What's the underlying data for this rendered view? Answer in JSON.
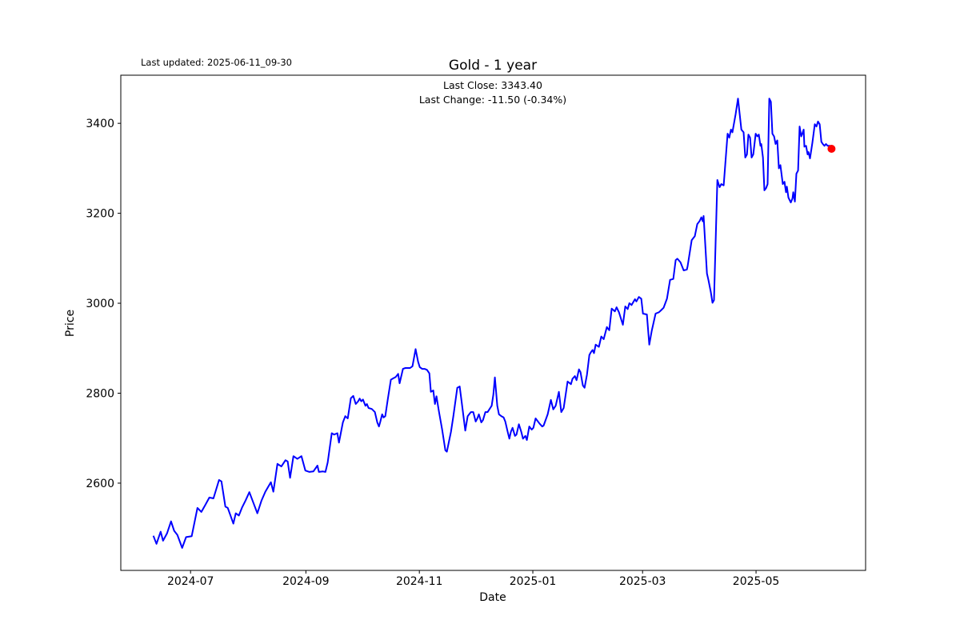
{
  "header": {
    "last_updated": "Last updated: 2025-06-11_09-30"
  },
  "chart_data": {
    "type": "line",
    "title": "Gold - 1 year",
    "xlabel": "Date",
    "ylabel": "Price",
    "annotation": {
      "last_close": "Last Close: 3343.40",
      "last_change": "Last Change: -11.50 (-0.34%)"
    },
    "last_close_value": 3343.4,
    "last_change_value": "-11.50 (-0.34%)",
    "line_color": "#0000ff",
    "marker_color": "#ff0000",
    "grid": false,
    "start_date": "2024-06-11",
    "x_unit": "days_since_start_date",
    "x_domain_days": [
      -17.5,
      382.9
    ],
    "y_domain": [
      2406,
      3507
    ],
    "x_ticks": [
      {
        "label": "2024-07",
        "day": 20
      },
      {
        "label": "2024-09",
        "day": 82
      },
      {
        "label": "2024-11",
        "day": 143
      },
      {
        "label": "2025-01",
        "day": 204
      },
      {
        "label": "2025-03",
        "day": 263
      },
      {
        "label": "2025-05",
        "day": 324
      }
    ],
    "y_ticks": [
      2600,
      2800,
      3000,
      3200,
      3400
    ],
    "last_point": {
      "day": 364.6,
      "price": 3343.4
    },
    "points": [
      [
        0,
        2483
      ],
      [
        1.7,
        2465
      ],
      [
        3.9,
        2492
      ],
      [
        5.2,
        2472
      ],
      [
        7.3,
        2488
      ],
      [
        9.5,
        2515
      ],
      [
        11.2,
        2494
      ],
      [
        12.9,
        2485
      ],
      [
        15.5,
        2456
      ],
      [
        17.6,
        2480
      ],
      [
        20.6,
        2482
      ],
      [
        23.7,
        2545
      ],
      [
        25.8,
        2536
      ],
      [
        28,
        2552
      ],
      [
        30.1,
        2568
      ],
      [
        32.3,
        2566
      ],
      [
        35.3,
        2607
      ],
      [
        36.6,
        2604
      ],
      [
        38.7,
        2548
      ],
      [
        40,
        2545
      ],
      [
        41.7,
        2525
      ],
      [
        43,
        2510
      ],
      [
        44.3,
        2533
      ],
      [
        46,
        2528
      ],
      [
        47.7,
        2546
      ],
      [
        49.5,
        2561
      ],
      [
        51.6,
        2580
      ],
      [
        53.8,
        2556
      ],
      [
        55.9,
        2533
      ],
      [
        58.1,
        2561
      ],
      [
        60.2,
        2581
      ],
      [
        63.2,
        2602
      ],
      [
        64.5,
        2581
      ],
      [
        66.7,
        2643
      ],
      [
        68.8,
        2637
      ],
      [
        71,
        2651
      ],
      [
        72.2,
        2648
      ],
      [
        73.5,
        2612
      ],
      [
        75.3,
        2660
      ],
      [
        77.4,
        2654
      ],
      [
        79.6,
        2660
      ],
      [
        81.7,
        2628
      ],
      [
        83.9,
        2625
      ],
      [
        86,
        2626
      ],
      [
        88.2,
        2639
      ],
      [
        89,
        2625
      ],
      [
        91.2,
        2626
      ],
      [
        92.5,
        2625
      ],
      [
        93.7,
        2646
      ],
      [
        95.9,
        2711
      ],
      [
        97.2,
        2708
      ],
      [
        98.9,
        2711
      ],
      [
        99.8,
        2690
      ],
      [
        101.9,
        2735
      ],
      [
        103.2,
        2749
      ],
      [
        104.5,
        2744
      ],
      [
        106.2,
        2789
      ],
      [
        107.5,
        2794
      ],
      [
        108.8,
        2776
      ],
      [
        110.1,
        2782
      ],
      [
        110.9,
        2788
      ],
      [
        111.8,
        2782
      ],
      [
        112.7,
        2786
      ],
      [
        114,
        2772
      ],
      [
        114.8,
        2776
      ],
      [
        115.7,
        2767
      ],
      [
        117.4,
        2765
      ],
      [
        119.1,
        2758
      ],
      [
        120.4,
        2735
      ],
      [
        121.3,
        2726
      ],
      [
        122.1,
        2738
      ],
      [
        123,
        2753
      ],
      [
        123.8,
        2746
      ],
      [
        124.7,
        2749
      ],
      [
        126,
        2786
      ],
      [
        127.7,
        2830
      ],
      [
        129,
        2833
      ],
      [
        130.3,
        2836
      ],
      [
        131.6,
        2843
      ],
      [
        132.4,
        2822
      ],
      [
        134.2,
        2854
      ],
      [
        135.5,
        2856
      ],
      [
        136.7,
        2856
      ],
      [
        138,
        2856
      ],
      [
        139.3,
        2860
      ],
      [
        141,
        2898
      ],
      [
        142.3,
        2870
      ],
      [
        143.2,
        2858
      ],
      [
        144.5,
        2854
      ],
      [
        145.8,
        2854
      ],
      [
        147.1,
        2852
      ],
      [
        148.4,
        2844
      ],
      [
        149.2,
        2803
      ],
      [
        150.5,
        2806
      ],
      [
        151.4,
        2776
      ],
      [
        152.2,
        2793
      ],
      [
        153.5,
        2760
      ],
      [
        155.2,
        2720
      ],
      [
        157,
        2673
      ],
      [
        157.8,
        2670
      ],
      [
        159.1,
        2696
      ],
      [
        160,
        2714
      ],
      [
        161.3,
        2749
      ],
      [
        163.4,
        2812
      ],
      [
        164.7,
        2815
      ],
      [
        165.6,
        2786
      ],
      [
        167.7,
        2717
      ],
      [
        169,
        2749
      ],
      [
        170.7,
        2758
      ],
      [
        172,
        2758
      ],
      [
        173.3,
        2737
      ],
      [
        174.2,
        2744
      ],
      [
        175,
        2753
      ],
      [
        176.3,
        2735
      ],
      [
        177.2,
        2740
      ],
      [
        178.5,
        2758
      ],
      [
        179.7,
        2758
      ],
      [
        181.9,
        2772
      ],
      [
        182.8,
        2797
      ],
      [
        183.6,
        2835
      ],
      [
        184.9,
        2772
      ],
      [
        185.8,
        2753
      ],
      [
        187.1,
        2749
      ],
      [
        188.3,
        2746
      ],
      [
        189.2,
        2737
      ],
      [
        190.5,
        2714
      ],
      [
        191.4,
        2699
      ],
      [
        192.2,
        2714
      ],
      [
        193.1,
        2723
      ],
      [
        194.4,
        2705
      ],
      [
        195.2,
        2708
      ],
      [
        196.5,
        2731
      ],
      [
        197.8,
        2714
      ],
      [
        198.7,
        2699
      ],
      [
        200,
        2705
      ],
      [
        200.8,
        2696
      ],
      [
        202.1,
        2726
      ],
      [
        203.4,
        2719
      ],
      [
        204.3,
        2723
      ],
      [
        205.5,
        2744
      ],
      [
        207.7,
        2732
      ],
      [
        209,
        2726
      ],
      [
        209.8,
        2728
      ],
      [
        212,
        2753
      ],
      [
        213.7,
        2785
      ],
      [
        215,
        2764
      ],
      [
        216.3,
        2772
      ],
      [
        218,
        2803
      ],
      [
        219.3,
        2758
      ],
      [
        220.6,
        2767
      ],
      [
        222.7,
        2826
      ],
      [
        224.5,
        2820
      ],
      [
        225.3,
        2832
      ],
      [
        226.6,
        2838
      ],
      [
        227.5,
        2829
      ],
      [
        228.8,
        2853
      ],
      [
        229.6,
        2847
      ],
      [
        230.9,
        2817
      ],
      [
        231.8,
        2812
      ],
      [
        233.1,
        2841
      ],
      [
        234.4,
        2885
      ],
      [
        235.2,
        2891
      ],
      [
        236.1,
        2896
      ],
      [
        236.9,
        2889
      ],
      [
        237.8,
        2908
      ],
      [
        239.5,
        2903
      ],
      [
        240.8,
        2926
      ],
      [
        242.1,
        2920
      ],
      [
        243.8,
        2947
      ],
      [
        245.1,
        2940
      ],
      [
        246.4,
        2988
      ],
      [
        248.1,
        2982
      ],
      [
        249,
        2991
      ],
      [
        250.3,
        2980
      ],
      [
        252.4,
        2952
      ],
      [
        253.7,
        2993
      ],
      [
        255,
        2987
      ],
      [
        255.9,
        3000
      ],
      [
        257.1,
        2996
      ],
      [
        258.9,
        3009
      ],
      [
        259.7,
        3004
      ],
      [
        261,
        3014
      ],
      [
        262.3,
        3010
      ],
      [
        263.2,
        2977
      ],
      [
        265.3,
        2975
      ],
      [
        266.6,
        2908
      ],
      [
        267.9,
        2938
      ],
      [
        270,
        2977
      ],
      [
        271.8,
        2980
      ],
      [
        273.1,
        2985
      ],
      [
        274.3,
        2990
      ],
      [
        276.1,
        3010
      ],
      [
        277.8,
        3052
      ],
      [
        279.5,
        3054
      ],
      [
        280.8,
        3096
      ],
      [
        281.7,
        3099
      ],
      [
        283.4,
        3091
      ],
      [
        285.1,
        3073
      ],
      [
        286.8,
        3075
      ],
      [
        287.2,
        3082
      ],
      [
        289.4,
        3140
      ],
      [
        291.1,
        3149
      ],
      [
        292.4,
        3176
      ],
      [
        293.7,
        3183
      ],
      [
        294.6,
        3191
      ],
      [
        295.4,
        3182
      ],
      [
        295.8,
        3194
      ],
      [
        297.6,
        3066
      ],
      [
        298.4,
        3052
      ],
      [
        299.7,
        3025
      ],
      [
        300.6,
        3001
      ],
      [
        301.4,
        3007
      ],
      [
        303.2,
        3274
      ],
      [
        304.4,
        3258
      ],
      [
        305.3,
        3265
      ],
      [
        306.6,
        3262
      ],
      [
        308.7,
        3377
      ],
      [
        309.6,
        3368
      ],
      [
        310.5,
        3386
      ],
      [
        311.3,
        3380
      ],
      [
        313,
        3420
      ],
      [
        314.3,
        3455
      ],
      [
        316.1,
        3386
      ],
      [
        317.3,
        3380
      ],
      [
        318.2,
        3324
      ],
      [
        319.1,
        3331
      ],
      [
        319.9,
        3375
      ],
      [
        320.8,
        3368
      ],
      [
        321.6,
        3324
      ],
      [
        322.5,
        3331
      ],
      [
        323.8,
        3377
      ],
      [
        324.7,
        3371
      ],
      [
        325.5,
        3375
      ],
      [
        326.4,
        3350
      ],
      [
        326.8,
        3354
      ],
      [
        327.7,
        3324
      ],
      [
        328.5,
        3251
      ],
      [
        329.4,
        3256
      ],
      [
        330.2,
        3265
      ],
      [
        331.1,
        3455
      ],
      [
        332,
        3448
      ],
      [
        332.8,
        3377
      ],
      [
        333.7,
        3371
      ],
      [
        334.5,
        3354
      ],
      [
        335.4,
        3362
      ],
      [
        336.3,
        3300
      ],
      [
        337.1,
        3307
      ],
      [
        338.4,
        3265
      ],
      [
        339.3,
        3270
      ],
      [
        340.1,
        3247
      ],
      [
        340.6,
        3259
      ],
      [
        341.4,
        3235
      ],
      [
        342.7,
        3224
      ],
      [
        343.6,
        3233
      ],
      [
        344,
        3247
      ],
      [
        344.9,
        3226
      ],
      [
        345.7,
        3288
      ],
      [
        346.6,
        3295
      ],
      [
        347.4,
        3393
      ],
      [
        348.3,
        3371
      ],
      [
        348.7,
        3375
      ],
      [
        349.6,
        3386
      ],
      [
        350,
        3348
      ],
      [
        350.9,
        3350
      ],
      [
        351.7,
        3331
      ],
      [
        352.2,
        3336
      ],
      [
        353,
        3322
      ],
      [
        354.3,
        3357
      ],
      [
        355.6,
        3398
      ],
      [
        356.5,
        3393
      ],
      [
        357.3,
        3404
      ],
      [
        358.2,
        3398
      ],
      [
        359.1,
        3359
      ],
      [
        359.9,
        3354
      ],
      [
        360.8,
        3350
      ],
      [
        361.6,
        3354
      ],
      [
        362.5,
        3350
      ],
      [
        363.8,
        3350
      ],
      [
        364.6,
        3343.4
      ]
    ]
  }
}
